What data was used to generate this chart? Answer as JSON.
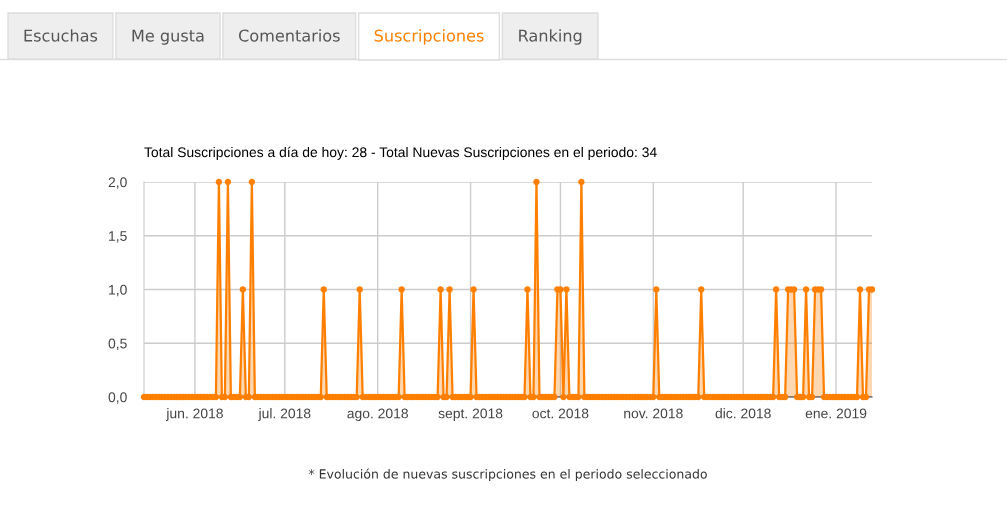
{
  "chart_data": [
    {
      "type": "other",
      "categories": [
        "Escuchas",
        "Me gusta",
        "Comentarios",
        "Suscripciones",
        "Ranking"
      ],
      "colors": [
        "#eeeeee",
        "#eeeeee",
        "#eeeeee",
        "#ffffff",
        "#eeeeee"
      ]
    },
    {
      "type": "area",
      "title": "Total Suscripciones a día de hoy: 28 - Total Nuevas Suscripciones en el periodo: 34",
      "annotations": [
        "* Evolución de nuevas suscripciones en el periodo seleccionado"
      ],
      "x": [
        "2018-05-15",
        "2018-05-16",
        "2018-05-17",
        "2018-05-18",
        "2018-05-19",
        "2018-05-20",
        "2018-05-21",
        "2018-05-22",
        "2018-05-23",
        "2018-05-24",
        "2018-05-25",
        "2018-05-26",
        "2018-05-27",
        "2018-05-28",
        "2018-05-29",
        "2018-05-30",
        "2018-05-31",
        "2018-06-01",
        "2018-06-02",
        "2018-06-03",
        "2018-06-04",
        "2018-06-05",
        "2018-06-06",
        "2018-06-07",
        "2018-06-08",
        "2018-06-09",
        "2018-06-10",
        "2018-06-11",
        "2018-06-12",
        "2018-06-13",
        "2018-06-14",
        "2018-06-15",
        "2018-06-16",
        "2018-06-17",
        "2018-06-18",
        "2018-06-19",
        "2018-06-20",
        "2018-06-21",
        "2018-06-22",
        "2018-06-23",
        "2018-06-24",
        "2018-06-25",
        "2018-06-26",
        "2018-06-27",
        "2018-06-28",
        "2018-06-29",
        "2018-06-30",
        "2018-07-01",
        "2018-07-02",
        "2018-07-03",
        "2018-07-04",
        "2018-07-05",
        "2018-07-06",
        "2018-07-07",
        "2018-07-08",
        "2018-07-09",
        "2018-07-10",
        "2018-07-11",
        "2018-07-12",
        "2018-07-13",
        "2018-07-14",
        "2018-07-15",
        "2018-07-16",
        "2018-07-17",
        "2018-07-18",
        "2018-07-19",
        "2018-07-20",
        "2018-07-21",
        "2018-07-22",
        "2018-07-23",
        "2018-07-24",
        "2018-07-25",
        "2018-07-26",
        "2018-07-27",
        "2018-07-28",
        "2018-07-29",
        "2018-07-30",
        "2018-07-31",
        "2018-08-01",
        "2018-08-02",
        "2018-08-03",
        "2018-08-04",
        "2018-08-05",
        "2018-08-06",
        "2018-08-07",
        "2018-08-08",
        "2018-08-09",
        "2018-08-10",
        "2018-08-11",
        "2018-08-12",
        "2018-08-13",
        "2018-08-14",
        "2018-08-15",
        "2018-08-16",
        "2018-08-17",
        "2018-08-18",
        "2018-08-19",
        "2018-08-20",
        "2018-08-21",
        "2018-08-22",
        "2018-08-23",
        "2018-08-24",
        "2018-08-25",
        "2018-08-26",
        "2018-08-27",
        "2018-08-28",
        "2018-08-29",
        "2018-08-30",
        "2018-08-31",
        "2018-09-01",
        "2018-09-02",
        "2018-09-03",
        "2018-09-04",
        "2018-09-05",
        "2018-09-06",
        "2018-09-07",
        "2018-09-08",
        "2018-09-09",
        "2018-09-10",
        "2018-09-11",
        "2018-09-12",
        "2018-09-13",
        "2018-09-14",
        "2018-09-15",
        "2018-09-16",
        "2018-09-17",
        "2018-09-18",
        "2018-09-19",
        "2018-09-20",
        "2018-09-21",
        "2018-09-22",
        "2018-09-23",
        "2018-09-24",
        "2018-09-25",
        "2018-09-26",
        "2018-09-27",
        "2018-09-28",
        "2018-09-29",
        "2018-09-30",
        "2018-10-01",
        "2018-10-02",
        "2018-10-03",
        "2018-10-04",
        "2018-10-05",
        "2018-10-06",
        "2018-10-07",
        "2018-10-08",
        "2018-10-09",
        "2018-10-10",
        "2018-10-11",
        "2018-10-12",
        "2018-10-13",
        "2018-10-14",
        "2018-10-15",
        "2018-10-16",
        "2018-10-17",
        "2018-10-18",
        "2018-10-19",
        "2018-10-20",
        "2018-10-21",
        "2018-10-22",
        "2018-10-23",
        "2018-10-24",
        "2018-10-25",
        "2018-10-26",
        "2018-10-27",
        "2018-10-28",
        "2018-10-29",
        "2018-10-30",
        "2018-10-31",
        "2018-11-01",
        "2018-11-02",
        "2018-11-03",
        "2018-11-04",
        "2018-11-05",
        "2018-11-06",
        "2018-11-07",
        "2018-11-08",
        "2018-11-09",
        "2018-11-10",
        "2018-11-11",
        "2018-11-12",
        "2018-11-13",
        "2018-11-14",
        "2018-11-15",
        "2018-11-16",
        "2018-11-17",
        "2018-11-18",
        "2018-11-19",
        "2018-11-20",
        "2018-11-21",
        "2018-11-22",
        "2018-11-23",
        "2018-11-24",
        "2018-11-25",
        "2018-11-26",
        "2018-11-27",
        "2018-11-28",
        "2018-11-29",
        "2018-11-30",
        "2018-12-01",
        "2018-12-02",
        "2018-12-03",
        "2018-12-04",
        "2018-12-05",
        "2018-12-06",
        "2018-12-07",
        "2018-12-08",
        "2018-12-09",
        "2018-12-10",
        "2018-12-11",
        "2018-12-12",
        "2018-12-13",
        "2018-12-14",
        "2018-12-15",
        "2018-12-16",
        "2018-12-17",
        "2018-12-18",
        "2018-12-19",
        "2018-12-20",
        "2018-12-21",
        "2018-12-22",
        "2018-12-23",
        "2018-12-24",
        "2018-12-25",
        "2018-12-26",
        "2018-12-27",
        "2018-12-28",
        "2018-12-29",
        "2018-12-30",
        "2018-12-31",
        "2019-01-01",
        "2019-01-02",
        "2019-01-03",
        "2019-01-04",
        "2019-01-05",
        "2019-01-06",
        "2019-01-07",
        "2019-01-08",
        "2019-01-09",
        "2019-01-10",
        "2019-01-11",
        "2019-01-12",
        "2019-01-13"
      ],
      "series": [
        {
          "color": "#ff7f00",
          "values": [
            0,
            0,
            0,
            0,
            0,
            0,
            0,
            0,
            0,
            0,
            0,
            0,
            0,
            0,
            0,
            0,
            0,
            0,
            0,
            0,
            0,
            0,
            0,
            0,
            0,
            2,
            0,
            0,
            2,
            0,
            0,
            0,
            0,
            1,
            0,
            0,
            2,
            0,
            0,
            0,
            0,
            0,
            0,
            0,
            0,
            0,
            0,
            0,
            0,
            0,
            0,
            0,
            0,
            0,
            0,
            0,
            0,
            0,
            0,
            0,
            1,
            0,
            0,
            0,
            0,
            0,
            0,
            0,
            0,
            0,
            0,
            0,
            1,
            0,
            0,
            0,
            0,
            0,
            0,
            0,
            0,
            0,
            0,
            0,
            0,
            0,
            1,
            0,
            0,
            0,
            0,
            0,
            0,
            0,
            0,
            0,
            0,
            0,
            0,
            1,
            0,
            0,
            1,
            0,
            0,
            0,
            0,
            0,
            0,
            0,
            1,
            0,
            0,
            0,
            0,
            0,
            0,
            0,
            0,
            0,
            0,
            0,
            0,
            0,
            0,
            0,
            0,
            0,
            1,
            0,
            0,
            2,
            0,
            0,
            0,
            0,
            0,
            0,
            1,
            1,
            0,
            1,
            0,
            0,
            0,
            0,
            2,
            0,
            0,
            0,
            0,
            0,
            0,
            0,
            0,
            0,
            0,
            0,
            0,
            0,
            0,
            0,
            0,
            0,
            0,
            0,
            0,
            0,
            0,
            0,
            0,
            1,
            0,
            0,
            0,
            0,
            0,
            0,
            0,
            0,
            0,
            0,
            0,
            0,
            0,
            0,
            1,
            0,
            0,
            0,
            0,
            0,
            0,
            0,
            0,
            0,
            0,
            0,
            0,
            0,
            0,
            0,
            0,
            0,
            0,
            0,
            0,
            0,
            0,
            0,
            0,
            1,
            0,
            0,
            0,
            1,
            1,
            1,
            0,
            0,
            0,
            1,
            0,
            0,
            1,
            1,
            1,
            0,
            0,
            0,
            0,
            0,
            0,
            0,
            0,
            0,
            0,
            0,
            0,
            1,
            0,
            0,
            1,
            1
          ]
        }
      ],
      "xlim": [
        "2018-05-15",
        "2019-01-13"
      ],
      "xticks": [
        {
          "value": "2018-06-01",
          "label": "jun. 2018"
        },
        {
          "value": "2018-07-01",
          "label": "jul. 2018"
        },
        {
          "value": "2018-08-01",
          "label": "ago. 2018"
        },
        {
          "value": "2018-09-01",
          "label": "sept. 2018"
        },
        {
          "value": "2018-10-01",
          "label": "oct. 2018"
        },
        {
          "value": "2018-11-01",
          "label": "nov. 2018"
        },
        {
          "value": "2018-12-01",
          "label": "dic. 2018"
        },
        {
          "value": "2019-01-01",
          "label": "ene. 2019"
        }
      ],
      "ylim": [
        0,
        2
      ],
      "yticks": [
        {
          "value": 0,
          "label": "0,0"
        },
        {
          "value": 0.5,
          "label": "0,5"
        },
        {
          "value": 1,
          "label": "1,0"
        },
        {
          "value": 1.5,
          "label": "1,5"
        },
        {
          "value": 2,
          "label": "2,0"
        }
      ],
      "grid": true,
      "marker": "circle",
      "line_style": "solid"
    }
  ]
}
